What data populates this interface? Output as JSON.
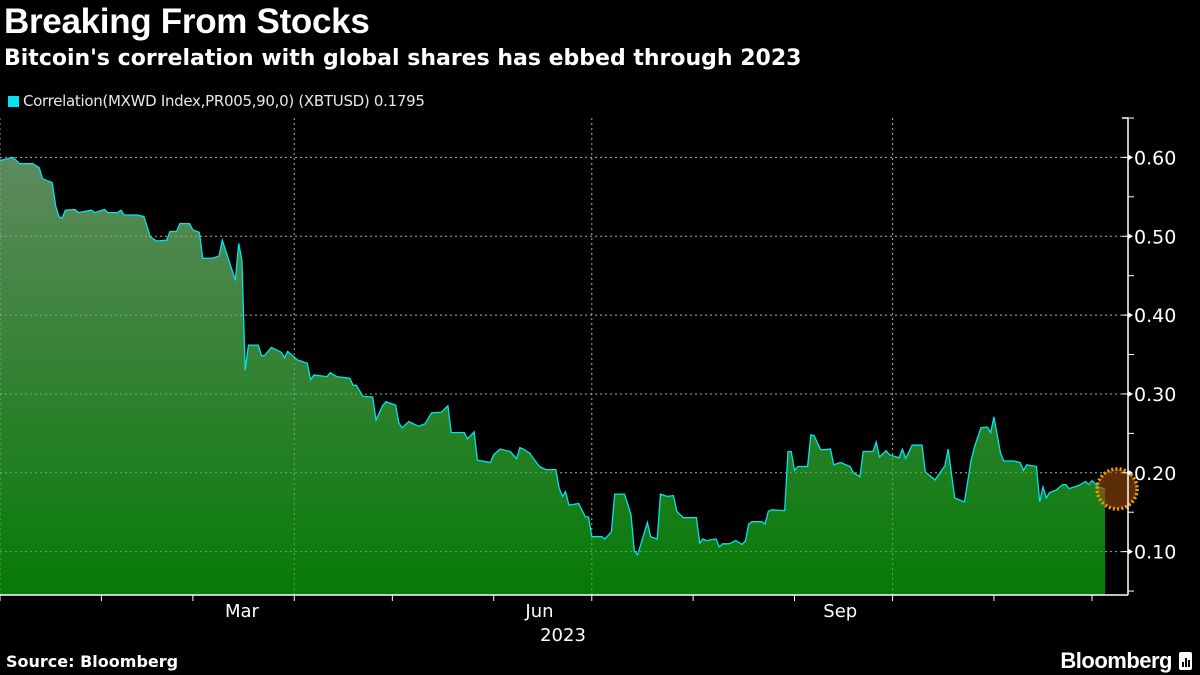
{
  "title": "Breaking From Stocks",
  "subtitle": "Bitcoin's correlation with global shares has ebbed through 2023",
  "source": "Source: Bloomberg",
  "logo_text": "Bloomberg",
  "chart_data": {
    "type": "area",
    "title": "Breaking From Stocks",
    "subtitle": "Bitcoin's correlation with global shares has ebbed through 2023",
    "legend": [
      {
        "label": "Correlation(MXWD Index,PR005,90,0) (XBTUSD) 0.1795",
        "color": "#00e5f0"
      }
    ],
    "legend_position": "top-left",
    "line_color": "#00e5f0",
    "fill_top_color": "#5e8a5e",
    "fill_bottom_color": "#067a06",
    "marker_color": "#f0a000",
    "grid": true,
    "y_axis_side": "right",
    "xlim": [
      "2023-01-01",
      "2023-12-12"
    ],
    "ylim": [
      0.045,
      0.65
    ],
    "yticks": [
      0.1,
      0.2,
      0.3,
      0.4,
      0.5,
      0.6
    ],
    "ytick_labels": [
      "0.10",
      "0.20",
      "0.30",
      "0.40",
      "0.50",
      "0.60"
    ],
    "xtick_labels": [
      {
        "label": "Mar",
        "date": "2023-03-16"
      },
      {
        "label": "Jun",
        "date": "2023-06-15"
      },
      {
        "label": "Sep",
        "date": "2023-09-15"
      }
    ],
    "xlabel": "2023",
    "last_value": 0.1795,
    "series": [
      {
        "name": "Correlation(MXWD Index,PR005,90,0) (XBTUSD)",
        "points": [
          [
            "2023-01-01",
            0.596
          ],
          [
            "2023-01-05",
            0.6
          ],
          [
            "2023-01-07",
            0.592
          ],
          [
            "2023-01-11",
            0.592
          ],
          [
            "2023-01-13",
            0.587
          ],
          [
            "2023-01-14",
            0.573
          ],
          [
            "2023-01-17",
            0.568
          ],
          [
            "2023-01-18",
            0.539
          ],
          [
            "2023-01-19",
            0.525
          ],
          [
            "2023-01-20",
            0.523
          ],
          [
            "2023-01-21",
            0.533
          ],
          [
            "2023-01-24",
            0.534
          ],
          [
            "2023-01-25",
            0.53
          ],
          [
            "2023-01-29",
            0.533
          ],
          [
            "2023-01-30",
            0.53
          ],
          [
            "2023-02-02",
            0.534
          ],
          [
            "2023-02-03",
            0.53
          ],
          [
            "2023-02-06",
            0.53
          ],
          [
            "2023-02-07",
            0.533
          ],
          [
            "2023-02-08",
            0.527
          ],
          [
            "2023-02-12",
            0.527
          ],
          [
            "2023-02-14",
            0.525
          ],
          [
            "2023-02-16",
            0.499
          ],
          [
            "2023-02-18",
            0.494
          ],
          [
            "2023-02-21",
            0.495
          ],
          [
            "2023-02-22",
            0.506
          ],
          [
            "2023-02-24",
            0.506
          ],
          [
            "2023-02-25",
            0.516
          ],
          [
            "2023-02-28",
            0.516
          ],
          [
            "2023-03-01",
            0.508
          ],
          [
            "2023-03-03",
            0.505
          ],
          [
            "2023-03-04",
            0.472
          ],
          [
            "2023-03-07",
            0.472
          ],
          [
            "2023-03-09",
            0.475
          ],
          [
            "2023-03-10",
            0.495
          ],
          [
            "2023-03-14",
            0.444
          ],
          [
            "2023-03-15",
            0.491
          ],
          [
            "2023-03-16",
            0.47
          ],
          [
            "2023-03-17",
            0.33
          ],
          [
            "2023-03-18",
            0.362
          ],
          [
            "2023-03-21",
            0.362
          ],
          [
            "2023-03-22",
            0.348
          ],
          [
            "2023-03-23",
            0.349
          ],
          [
            "2023-03-25",
            0.359
          ],
          [
            "2023-03-28",
            0.353
          ],
          [
            "2023-03-29",
            0.346
          ],
          [
            "2023-03-30",
            0.354
          ],
          [
            "2023-04-02",
            0.343
          ],
          [
            "2023-04-05",
            0.339
          ],
          [
            "2023-04-06",
            0.318
          ],
          [
            "2023-04-07",
            0.324
          ],
          [
            "2023-04-11",
            0.322
          ],
          [
            "2023-04-12",
            0.327
          ],
          [
            "2023-04-14",
            0.322
          ],
          [
            "2023-04-18",
            0.32
          ],
          [
            "2023-04-19",
            0.311
          ],
          [
            "2023-04-20",
            0.311
          ],
          [
            "2023-04-22",
            0.297
          ],
          [
            "2023-04-25",
            0.296
          ],
          [
            "2023-04-26",
            0.267
          ],
          [
            "2023-04-28",
            0.285
          ],
          [
            "2023-04-29",
            0.29
          ],
          [
            "2023-05-02",
            0.286
          ],
          [
            "2023-05-03",
            0.263
          ],
          [
            "2023-05-04",
            0.257
          ],
          [
            "2023-05-06",
            0.265
          ],
          [
            "2023-05-09",
            0.259
          ],
          [
            "2023-05-11",
            0.262
          ],
          [
            "2023-05-13",
            0.276
          ],
          [
            "2023-05-16",
            0.277
          ],
          [
            "2023-05-18",
            0.285
          ],
          [
            "2023-05-19",
            0.251
          ],
          [
            "2023-05-23",
            0.251
          ],
          [
            "2023-05-24",
            0.243
          ],
          [
            "2023-05-26",
            0.252
          ],
          [
            "2023-05-27",
            0.216
          ],
          [
            "2023-05-31",
            0.213
          ],
          [
            "2023-06-01",
            0.223
          ],
          [
            "2023-06-03",
            0.23
          ],
          [
            "2023-06-06",
            0.227
          ],
          [
            "2023-06-08",
            0.218
          ],
          [
            "2023-06-09",
            0.232
          ],
          [
            "2023-06-10",
            0.23
          ],
          [
            "2023-06-12",
            0.225
          ],
          [
            "2023-06-13",
            0.219
          ],
          [
            "2023-06-15",
            0.208
          ],
          [
            "2023-06-17",
            0.204
          ],
          [
            "2023-06-20",
            0.204
          ],
          [
            "2023-06-21",
            0.181
          ],
          [
            "2023-06-22",
            0.17
          ],
          [
            "2023-06-23",
            0.176
          ],
          [
            "2023-06-24",
            0.159
          ],
          [
            "2023-06-27",
            0.161
          ],
          [
            "2023-06-29",
            0.144
          ],
          [
            "2023-06-30",
            0.144
          ],
          [
            "2023-07-01",
            0.119
          ],
          [
            "2023-07-04",
            0.119
          ],
          [
            "2023-07-05",
            0.116
          ],
          [
            "2023-07-07",
            0.125
          ],
          [
            "2023-07-08",
            0.173
          ],
          [
            "2023-07-11",
            0.173
          ],
          [
            "2023-07-13",
            0.147
          ],
          [
            "2023-07-14",
            0.101
          ],
          [
            "2023-07-15",
            0.096
          ],
          [
            "2023-07-18",
            0.137
          ],
          [
            "2023-07-19",
            0.119
          ],
          [
            "2023-07-21",
            0.116
          ],
          [
            "2023-07-22",
            0.173
          ],
          [
            "2023-07-24",
            0.17
          ],
          [
            "2023-07-26",
            0.171
          ],
          [
            "2023-07-27",
            0.151
          ],
          [
            "2023-07-29",
            0.143
          ],
          [
            "2023-08-02",
            0.143
          ],
          [
            "2023-08-03",
            0.111
          ],
          [
            "2023-08-04",
            0.116
          ],
          [
            "2023-08-05",
            0.114
          ],
          [
            "2023-08-08",
            0.116
          ],
          [
            "2023-08-09",
            0.106
          ],
          [
            "2023-08-10",
            0.11
          ],
          [
            "2023-08-12",
            0.11
          ],
          [
            "2023-08-14",
            0.114
          ],
          [
            "2023-08-16",
            0.109
          ],
          [
            "2023-08-17",
            0.114
          ],
          [
            "2023-08-18",
            0.135
          ],
          [
            "2023-08-19",
            0.138
          ],
          [
            "2023-08-22",
            0.138
          ],
          [
            "2023-08-23",
            0.135
          ],
          [
            "2023-08-24",
            0.151
          ],
          [
            "2023-08-25",
            0.153
          ],
          [
            "2023-08-29",
            0.152
          ],
          [
            "2023-08-30",
            0.227
          ],
          [
            "2023-08-31",
            0.227
          ],
          [
            "2023-09-01",
            0.203
          ],
          [
            "2023-09-02",
            0.208
          ],
          [
            "2023-09-05",
            0.208
          ],
          [
            "2023-09-06",
            0.248
          ],
          [
            "2023-09-07",
            0.247
          ],
          [
            "2023-09-09",
            0.229
          ],
          [
            "2023-09-12",
            0.23
          ],
          [
            "2023-09-13",
            0.21
          ],
          [
            "2023-09-15",
            0.213
          ],
          [
            "2023-09-18",
            0.208
          ],
          [
            "2023-09-19",
            0.2
          ],
          [
            "2023-09-21",
            0.195
          ],
          [
            "2023-09-22",
            0.227
          ],
          [
            "2023-09-25",
            0.227
          ],
          [
            "2023-09-26",
            0.239
          ],
          [
            "2023-09-27",
            0.22
          ],
          [
            "2023-09-29",
            0.228
          ],
          [
            "2023-09-30",
            0.223
          ],
          [
            "2023-10-03",
            0.219
          ],
          [
            "2023-10-04",
            0.23
          ],
          [
            "2023-10-05",
            0.218
          ],
          [
            "2023-10-07",
            0.235
          ],
          [
            "2023-10-10",
            0.235
          ],
          [
            "2023-10-11",
            0.201
          ],
          [
            "2023-10-14",
            0.191
          ],
          [
            "2023-10-17",
            0.209
          ],
          [
            "2023-10-18",
            0.23
          ],
          [
            "2023-10-20",
            0.168
          ],
          [
            "2023-10-23",
            0.163
          ],
          [
            "2023-10-25",
            0.216
          ],
          [
            "2023-10-26",
            0.232
          ],
          [
            "2023-10-28",
            0.257
          ],
          [
            "2023-10-30",
            0.258
          ],
          [
            "2023-10-31",
            0.251
          ],
          [
            "2023-11-01",
            0.271
          ],
          [
            "2023-11-03",
            0.225
          ],
          [
            "2023-11-04",
            0.215
          ],
          [
            "2023-11-07",
            0.215
          ],
          [
            "2023-11-09",
            0.213
          ],
          [
            "2023-11-10",
            0.203
          ],
          [
            "2023-11-11",
            0.21
          ],
          [
            "2023-11-14",
            0.208
          ],
          [
            "2023-11-15",
            0.163
          ],
          [
            "2023-11-16",
            0.182
          ],
          [
            "2023-11-17",
            0.168
          ],
          [
            "2023-11-18",
            0.175
          ],
          [
            "2023-11-20",
            0.178
          ],
          [
            "2023-11-22",
            0.185
          ],
          [
            "2023-11-23",
            0.185
          ],
          [
            "2023-11-24",
            0.18
          ],
          [
            "2023-11-27",
            0.184
          ],
          [
            "2023-11-29",
            0.189
          ],
          [
            "2023-11-30",
            0.185
          ],
          [
            "2023-12-01",
            0.19
          ],
          [
            "2023-12-03",
            0.182
          ],
          [
            "2023-12-05",
            0.1795
          ]
        ]
      }
    ]
  }
}
